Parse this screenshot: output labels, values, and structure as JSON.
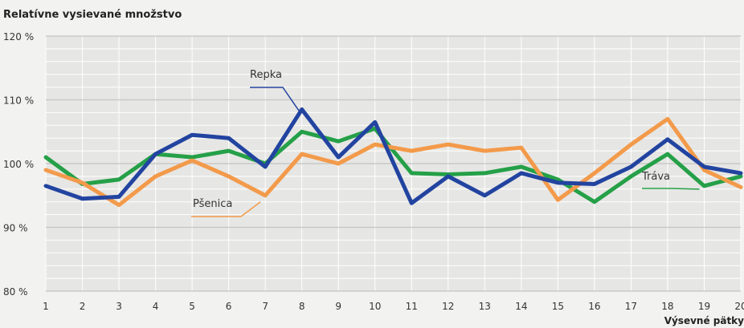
{
  "chart_data": {
    "type": "line",
    "title": "",
    "ylabel": "Relatívne vysievané množstvo",
    "xlabel": "Výsevné pätky",
    "x": [
      1,
      2,
      3,
      4,
      5,
      6,
      7,
      8,
      9,
      10,
      11,
      12,
      13,
      14,
      15,
      16,
      17,
      18,
      19,
      20
    ],
    "ylim": [
      80,
      120
    ],
    "yticks": [
      "80 %",
      "90 %",
      "100 %",
      "110 %",
      "120 %"
    ],
    "ytick_values": [
      80,
      90,
      100,
      110,
      120
    ],
    "grid": true,
    "series": [
      {
        "name": "Repka",
        "color": "#2244a0",
        "values": [
          96.5,
          94.5,
          94.8,
          101.5,
          104.5,
          104.0,
          99.5,
          108.5,
          101.0,
          106.5,
          93.8,
          98.0,
          95.0,
          98.5,
          97.0,
          96.8,
          99.5,
          103.8,
          99.5,
          98.5
        ]
      },
      {
        "name": "Pšenica",
        "color": "#f39a4a",
        "values": [
          99.0,
          97.0,
          93.5,
          98.0,
          100.5,
          98.0,
          95.0,
          101.5,
          100.0,
          103.0,
          102.0,
          103.0,
          102.0,
          102.5,
          94.3,
          98.5,
          103.0,
          107.0,
          99.0,
          96.3
        ]
      },
      {
        "name": "Tráva",
        "color": "#25a048",
        "values": [
          101.0,
          96.8,
          97.5,
          101.5,
          101.0,
          102.0,
          100.0,
          105.0,
          103.5,
          105.5,
          98.5,
          98.3,
          98.5,
          99.5,
          97.5,
          94.0,
          98.0,
          101.5,
          96.5,
          98.0
        ]
      }
    ]
  }
}
